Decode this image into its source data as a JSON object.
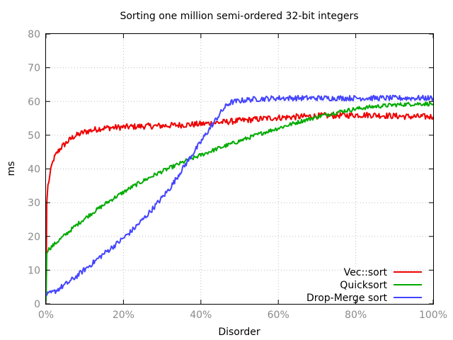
{
  "chart_data": {
    "type": "line",
    "title": "Sorting one million semi-ordered 32-bit integers",
    "xlabel": "Disorder",
    "ylabel": "ms",
    "xlim": [
      0,
      100
    ],
    "ylim": [
      0,
      80
    ],
    "x_ticks": [
      0,
      20,
      40,
      60,
      80,
      100
    ],
    "x_tick_labels": [
      "0%",
      "20%",
      "40%",
      "60%",
      "80%",
      "100%"
    ],
    "y_ticks": [
      0,
      10,
      20,
      30,
      40,
      50,
      60,
      70,
      80
    ],
    "y_tick_labels": [
      "0",
      "10",
      "20",
      "30",
      "40",
      "50",
      "60",
      "70",
      "80"
    ],
    "grid": true,
    "legend_position": "bottom-right",
    "series": [
      {
        "name": "Vec::sort",
        "color": "#ee0000",
        "x": [
          0,
          0.2,
          0.5,
          1,
          1.5,
          2,
          3,
          4,
          5,
          6,
          7,
          8,
          10,
          12,
          14,
          16,
          18,
          20,
          22,
          24,
          26,
          28,
          30,
          32,
          34,
          36,
          38,
          40,
          42,
          44,
          46,
          48,
          50,
          52,
          54,
          56,
          58,
          60,
          62,
          64,
          66,
          68,
          70,
          72,
          74,
          76,
          78,
          80,
          82,
          84,
          86,
          88,
          90,
          92,
          94,
          96,
          98,
          100
        ],
        "y": [
          1,
          30,
          35,
          38,
          41,
          43,
          45,
          46.5,
          47.5,
          48.5,
          49.5,
          50,
          51,
          51.5,
          52,
          52.2,
          52.3,
          52.4,
          52.5,
          52.6,
          52.7,
          52.7,
          52.8,
          52.9,
          53,
          53.1,
          53.2,
          53.3,
          53.5,
          53.7,
          53.9,
          54.1,
          54.3,
          54.5,
          54.7,
          54.9,
          55.1,
          55.2,
          55.3,
          55.4,
          55.5,
          55.6,
          55.7,
          55.8,
          55.8,
          55.9,
          55.9,
          56,
          56,
          56,
          55.9,
          55.8,
          55.7,
          55.6,
          55.5,
          55.5,
          55.5,
          55.5
        ]
      },
      {
        "name": "Quicksort",
        "color": "#00aa00",
        "x": [
          0,
          0.2,
          0.5,
          1,
          2,
          4,
          6,
          8,
          10,
          12,
          14,
          16,
          18,
          20,
          22,
          24,
          26,
          28,
          30,
          32,
          34,
          36,
          38,
          40,
          42,
          44,
          46,
          48,
          50,
          52,
          54,
          56,
          58,
          60,
          62,
          64,
          66,
          68,
          70,
          72,
          74,
          76,
          78,
          80,
          82,
          84,
          86,
          88,
          90,
          92,
          94,
          96,
          98,
          100
        ],
        "y": [
          1,
          15,
          16,
          16.5,
          17.5,
          19.5,
          21.5,
          23.5,
          25.3,
          27,
          28.6,
          30.2,
          31.7,
          33.1,
          34.5,
          35.8,
          37,
          38.2,
          39.3,
          40.3,
          41.3,
          42.3,
          43.2,
          44.1,
          45,
          45.9,
          46.7,
          47.5,
          48.3,
          49.1,
          49.9,
          50.7,
          51.4,
          52.1,
          52.8,
          53.5,
          54.2,
          54.8,
          55.4,
          56,
          56.5,
          57,
          57.4,
          57.8,
          58.1,
          58.4,
          58.6,
          58.8,
          59,
          59.1,
          59.2,
          59.3,
          59.3,
          59.3
        ]
      },
      {
        "name": "Drop-Merge sort",
        "color": "#4444ff",
        "x": [
          0,
          2,
          4,
          6,
          8,
          10,
          12,
          14,
          16,
          18,
          20,
          22,
          24,
          26,
          28,
          30,
          32,
          33,
          34,
          35,
          36,
          37,
          38,
          39,
          40,
          41,
          42,
          43,
          44,
          45,
          46,
          47,
          48,
          50,
          52,
          54,
          56,
          58,
          60,
          62,
          64,
          66,
          68,
          70,
          72,
          74,
          76,
          78,
          80,
          82,
          84,
          86,
          88,
          90,
          92,
          94,
          96,
          98,
          100
        ],
        "y": [
          2.5,
          3.5,
          5,
          6.5,
          8.3,
          10.2,
          12,
          14,
          15.8,
          17.6,
          19.5,
          21.5,
          23.8,
          26.2,
          28.8,
          31.5,
          34.3,
          36,
          37.8,
          39.6,
          41.3,
          43,
          44.7,
          46.3,
          48,
          49.8,
          51.5,
          53.2,
          54.8,
          56.5,
          58,
          59.2,
          59.8,
          60.2,
          60.5,
          60.7,
          60.8,
          60.9,
          61,
          61,
          61,
          61,
          61,
          61,
          61,
          61,
          61,
          61,
          61,
          61,
          61,
          61,
          61,
          61,
          61,
          61,
          61,
          61,
          61
        ]
      }
    ]
  }
}
